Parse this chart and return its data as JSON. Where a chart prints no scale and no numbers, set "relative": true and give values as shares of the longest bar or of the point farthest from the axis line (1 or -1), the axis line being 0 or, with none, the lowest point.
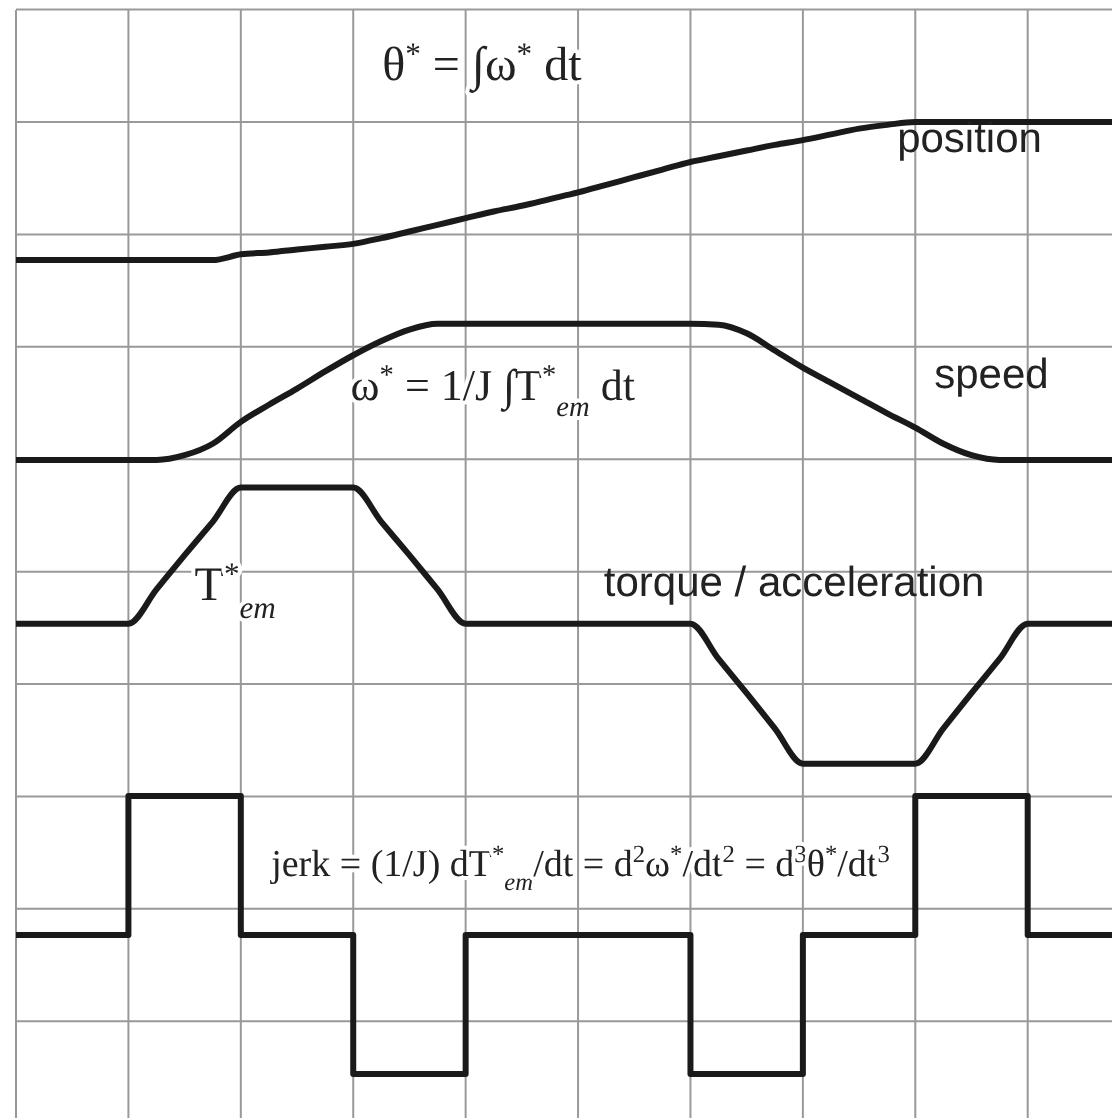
{
  "chart_data": {
    "type": "line",
    "relative": true,
    "grid": true,
    "categories": [
      null,
      null,
      null,
      null,
      null,
      null,
      null,
      null,
      null,
      null,
      null,
      null,
      null,
      null,
      null,
      null,
      null,
      null,
      null,
      null,
      null,
      null,
      null,
      null,
      null,
      null,
      null,
      null,
      null,
      null,
      null,
      null,
      null,
      null,
      null,
      null,
      null,
      null,
      null,
      null
    ],
    "series": [
      {
        "name": "position",
        "color": "#1a1a1a",
        "values": [
          0.855,
          0.855,
          0.855,
          0.855,
          0.855,
          0.855,
          0.855,
          0.855,
          0.861,
          0.863,
          0.866,
          0.869,
          0.872,
          0.878,
          0.885,
          0.892,
          0.899,
          0.906,
          0.912,
          0.919,
          0.926,
          0.934,
          0.942,
          0.95,
          0.958,
          0.964,
          0.97,
          0.976,
          0.981,
          0.987,
          0.993,
          0.997,
          1,
          1,
          1,
          1,
          1,
          1,
          1,
          1
        ]
      },
      {
        "name": "speed",
        "color": "#1a1a1a",
        "values": [
          0.645,
          0.645,
          0.645,
          0.645,
          0.645,
          0.645,
          0.65,
          0.662,
          0.685,
          0.703,
          0.72,
          0.738,
          0.755,
          0.77,
          0.782,
          0.788,
          0.788,
          0.788,
          0.788,
          0.788,
          0.788,
          0.788,
          0.788,
          0.788,
          0.788,
          0.787,
          0.778,
          0.76,
          0.742,
          0.726,
          0.71,
          0.694,
          0.679,
          0.662,
          0.65,
          0.645,
          0.645,
          0.645,
          0.645,
          0.645
        ]
      },
      {
        "name": "torque / acceleration",
        "color": "#1a1a1a",
        "values": [
          0.473,
          0.473,
          0.473,
          0.473,
          0.473,
          0.509,
          0.545,
          0.58,
          0.616,
          0.616,
          0.616,
          0.616,
          0.616,
          0.58,
          0.545,
          0.509,
          0.473,
          0.473,
          0.473,
          0.473,
          0.473,
          0.473,
          0.473,
          0.473,
          0.473,
          0.436,
          0.4,
          0.363,
          0.326,
          0.326,
          0.326,
          0.326,
          0.326,
          0.363,
          0.4,
          0.436,
          0.473,
          0.473,
          0.473,
          0.473
        ]
      },
      {
        "type": "step",
        "color": "#1a1a1a",
        "values": [
          0.146,
          0.146,
          0.146,
          0.146,
          0.292,
          0.292,
          0.292,
          0.292,
          0.146,
          0.146,
          0.146,
          0.146,
          0,
          0,
          0,
          0,
          0.146,
          0.146,
          0.146,
          0.146,
          0.146,
          0.146,
          0.146,
          0.146,
          0,
          0,
          0,
          0,
          0.146,
          0.146,
          0.146,
          0.146,
          0.292,
          0.292,
          0.292,
          0.292,
          0.146,
          0.146,
          0.146,
          0.146
        ]
      }
    ],
    "annotations": [
      "θ$^{*}$ = ∫ω$^{*}$ dt",
      "ω$^{*}$ = 1/J ∫T$^{*}$$_{em}$ dt",
      "T$^{*}$$_{em}$",
      "jerk = (1/J) dT$^{*}$$_{em}$/dt = d$^{2}$ω$^{*}$/dt$^{2}$ = d$^{3}$θ$^{*}$/dt$^{3}$"
    ]
  }
}
